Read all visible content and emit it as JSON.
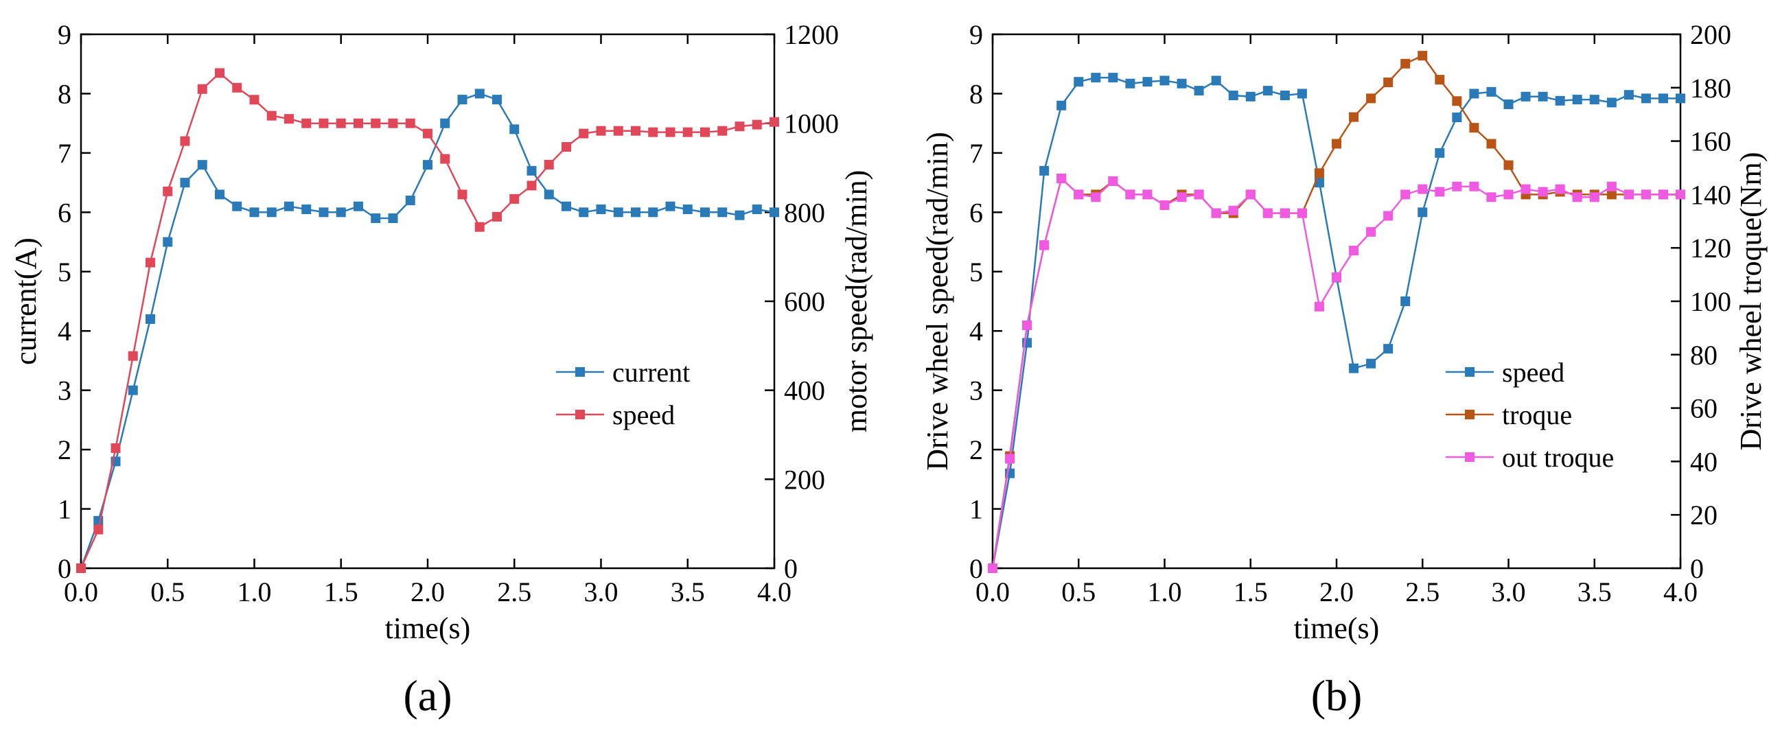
{
  "chart_data": [
    {
      "panel_label": "(a)",
      "type": "line",
      "xlabel": "time(s)",
      "ylabel_left": "current(A)",
      "ylabel_right": "motor speed(rad/min)",
      "xlim": [
        0,
        4.0
      ],
      "ylim_left": [
        0,
        9
      ],
      "ylim_right": [
        0,
        1200
      ],
      "x_ticks": [
        "0.0",
        "0.5",
        "1.0",
        "1.5",
        "2.0",
        "2.5",
        "3.0",
        "3.5",
        "4.0"
      ],
      "y_ticks_left": [
        "0",
        "1",
        "2",
        "3",
        "4",
        "5",
        "6",
        "7",
        "8",
        "9"
      ],
      "y_ticks_right": [
        "0",
        "200",
        "400",
        "600",
        "800",
        "1000",
        "1200"
      ],
      "legend_position": "center-right",
      "series": [
        {
          "name": "current",
          "axis": "left",
          "color": "#2a7ab8",
          "x": [
            0,
            0.1,
            0.2,
            0.3,
            0.4,
            0.5,
            0.6,
            0.7,
            0.8,
            0.9,
            1.0,
            1.1,
            1.2,
            1.3,
            1.4,
            1.5,
            1.6,
            1.7,
            1.8,
            1.9,
            2.0,
            2.1,
            2.2,
            2.3,
            2.4,
            2.5,
            2.6,
            2.7,
            2.8,
            2.9,
            3.0,
            3.1,
            3.2,
            3.3,
            3.4,
            3.5,
            3.6,
            3.7,
            3.8,
            3.9,
            4.0
          ],
          "y": [
            0,
            0.8,
            1.8,
            3.0,
            4.2,
            5.5,
            6.5,
            6.8,
            6.3,
            6.1,
            6.0,
            6.0,
            6.1,
            6.05,
            6.0,
            6.0,
            6.1,
            5.9,
            5.9,
            6.2,
            6.8,
            7.5,
            7.9,
            8.0,
            7.9,
            7.4,
            6.7,
            6.3,
            6.1,
            6.0,
            6.05,
            6.0,
            6.0,
            6.0,
            6.1,
            6.05,
            6.0,
            6.0,
            5.95,
            6.05,
            6.0
          ]
        },
        {
          "name": "speed",
          "axis": "right",
          "color": "#e0485a",
          "x": [
            0,
            0.1,
            0.2,
            0.3,
            0.4,
            0.5,
            0.6,
            0.7,
            0.8,
            0.9,
            1.0,
            1.1,
            1.2,
            1.3,
            1.4,
            1.5,
            1.6,
            1.7,
            1.8,
            1.9,
            2.0,
            2.1,
            2.2,
            2.3,
            2.4,
            2.5,
            2.6,
            2.7,
            2.8,
            2.9,
            3.0,
            3.1,
            3.2,
            3.3,
            3.4,
            3.5,
            3.6,
            3.7,
            3.8,
            3.9,
            4.0
          ],
          "y": [
            0,
            87,
            270,
            477,
            687,
            847,
            960,
            1077,
            1113,
            1080,
            1053,
            1017,
            1010,
            1000,
            1000,
            1000,
            1000,
            1000,
            1000,
            1000,
            977,
            920,
            840,
            767,
            790,
            830,
            860,
            907,
            947,
            977,
            983,
            983,
            983,
            980,
            980,
            980,
            980,
            983,
            993,
            997,
            1003
          ]
        }
      ]
    },
    {
      "panel_label": "(b)",
      "type": "line",
      "xlabel": "time(s)",
      "ylabel_left": "Drive wheel speed(rad/min)",
      "ylabel_right": "Drive wheel troque(Nm)",
      "xlim": [
        0,
        4.0
      ],
      "ylim_left": [
        0,
        9
      ],
      "ylim_right": [
        0,
        200
      ],
      "x_ticks": [
        "0.0",
        "0.5",
        "1.0",
        "1.5",
        "2.0",
        "2.5",
        "3.0",
        "3.5",
        "4.0"
      ],
      "y_ticks_left": [
        "0",
        "1",
        "2",
        "3",
        "4",
        "5",
        "6",
        "7",
        "8",
        "9"
      ],
      "y_ticks_right": [
        "0",
        "20",
        "40",
        "60",
        "80",
        "100",
        "120",
        "140",
        "160",
        "180",
        "200"
      ],
      "legend_position": "bottom-right",
      "series": [
        {
          "name": "speed",
          "axis": "left",
          "color": "#2a7ab8",
          "x": [
            0,
            0.1,
            0.2,
            0.3,
            0.4,
            0.5,
            0.6,
            0.7,
            0.8,
            0.9,
            1.0,
            1.1,
            1.2,
            1.3,
            1.4,
            1.5,
            1.6,
            1.7,
            1.8,
            1.9,
            2.0,
            2.1,
            2.2,
            2.3,
            2.4,
            2.5,
            2.6,
            2.7,
            2.8,
            2.9,
            3.0,
            3.1,
            3.2,
            3.3,
            3.4,
            3.5,
            3.6,
            3.7,
            3.8,
            3.9,
            4.0
          ],
          "y": [
            0,
            1.6,
            3.8,
            6.7,
            7.8,
            8.2,
            8.27,
            8.27,
            8.17,
            8.2,
            8.22,
            8.17,
            8.05,
            8.22,
            7.97,
            7.95,
            8.05,
            7.97,
            8.0,
            6.5,
            4.9,
            3.37,
            3.45,
            3.7,
            4.5,
            6.0,
            7.0,
            7.6,
            8.0,
            8.03,
            7.82,
            7.95,
            7.95,
            7.88,
            7.9,
            7.9,
            7.85,
            7.98,
            7.92,
            7.92,
            7.92
          ]
        },
        {
          "name": "troque",
          "axis": "right",
          "color": "#b85416",
          "x": [
            0,
            0.1,
            0.2,
            0.3,
            0.4,
            0.5,
            0.6,
            0.7,
            0.8,
            0.9,
            1.0,
            1.1,
            1.2,
            1.3,
            1.4,
            1.5,
            1.6,
            1.7,
            1.8,
            1.9,
            2.0,
            2.1,
            2.2,
            2.3,
            2.4,
            2.5,
            2.6,
            2.7,
            2.8,
            2.9,
            3.0,
            3.1,
            3.2,
            3.3,
            3.4,
            3.5,
            3.6,
            3.7,
            3.8,
            3.9,
            4.0
          ],
          "y": [
            0,
            42,
            91,
            121,
            146,
            140,
            140,
            145,
            140,
            140,
            136,
            140,
            140,
            133,
            133,
            140,
            133,
            133,
            133,
            148,
            159,
            169,
            176,
            182,
            189,
            192,
            183,
            175,
            165,
            159,
            151,
            140,
            140,
            141,
            140,
            140,
            140,
            140,
            140,
            140,
            140
          ]
        },
        {
          "name": "out troque",
          "axis": "right",
          "color": "#f05ae0",
          "x": [
            0,
            0.1,
            0.2,
            0.3,
            0.4,
            0.5,
            0.6,
            0.7,
            0.8,
            0.9,
            1.0,
            1.1,
            1.2,
            1.3,
            1.4,
            1.5,
            1.6,
            1.7,
            1.8,
            1.9,
            2.0,
            2.1,
            2.2,
            2.3,
            2.4,
            2.5,
            2.6,
            2.7,
            2.8,
            2.9,
            3.0,
            3.1,
            3.2,
            3.3,
            3.4,
            3.5,
            3.6,
            3.7,
            3.8,
            3.9,
            4.0
          ],
          "y": [
            0,
            41,
            91,
            121,
            146,
            140,
            139,
            145,
            140,
            140,
            136,
            139,
            140,
            133,
            134,
            140,
            133,
            133,
            133,
            98,
            109,
            119,
            126,
            132,
            140,
            142,
            141,
            143,
            143,
            139,
            140,
            142,
            141,
            142,
            139,
            139,
            143,
            140,
            140,
            140,
            140
          ]
        }
      ]
    }
  ]
}
